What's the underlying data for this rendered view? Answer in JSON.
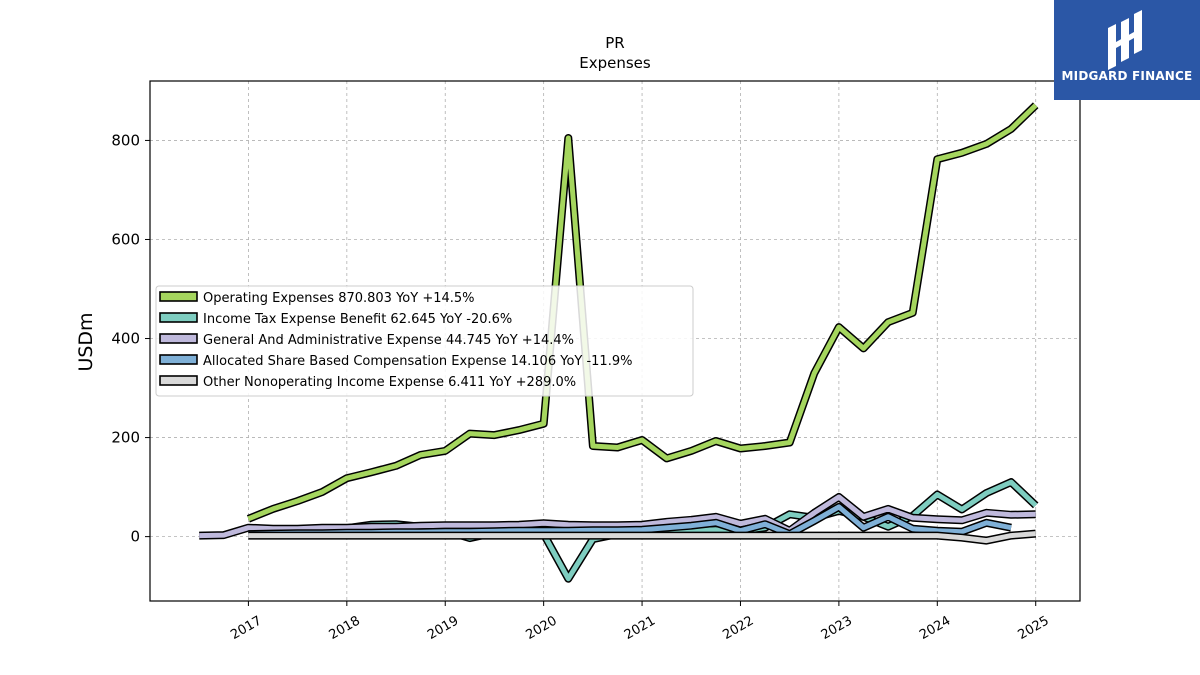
{
  "brand": {
    "name": "MIDGARD FINANCE",
    "bg": "#2b57a6"
  },
  "chart_data": {
    "type": "line",
    "title": "PR",
    "subtitle": "Expenses",
    "ylabel": "USDm",
    "xlim": [
      2016.0,
      2025.45
    ],
    "ylim": [
      -130,
      920
    ],
    "yticks": [
      0,
      200,
      400,
      600,
      800
    ],
    "xticks": [
      "2017",
      "2018",
      "2019",
      "2020",
      "2021",
      "2022",
      "2023",
      "2024",
      "2025"
    ],
    "grid": true,
    "legend_position": "center-left",
    "series": [
      {
        "name": "Operating Expenses",
        "legend": "Operating Expenses  870.803 YoY +14.5%",
        "color": "#a5d65e",
        "points": [
          [
            2017.0,
            36
          ],
          [
            2017.25,
            56
          ],
          [
            2017.5,
            72
          ],
          [
            2017.75,
            90
          ],
          [
            2018.0,
            118
          ],
          [
            2018.25,
            130
          ],
          [
            2018.5,
            143
          ],
          [
            2018.75,
            165
          ],
          [
            2019.0,
            173
          ],
          [
            2019.25,
            208
          ],
          [
            2019.5,
            205
          ],
          [
            2019.75,
            215
          ],
          [
            2020.0,
            228
          ],
          [
            2020.25,
            805
          ],
          [
            2020.5,
            183
          ],
          [
            2020.75,
            180
          ],
          [
            2021.0,
            195
          ],
          [
            2021.25,
            158
          ],
          [
            2021.5,
            173
          ],
          [
            2021.75,
            193
          ],
          [
            2022.0,
            178
          ],
          [
            2022.25,
            183
          ],
          [
            2022.5,
            190
          ],
          [
            2022.75,
            330
          ],
          [
            2023.0,
            423
          ],
          [
            2023.25,
            380
          ],
          [
            2023.5,
            433
          ],
          [
            2023.75,
            452
          ],
          [
            2024.0,
            762
          ],
          [
            2024.25,
            775
          ],
          [
            2024.5,
            793
          ],
          [
            2024.75,
            823
          ],
          [
            2025.0,
            871
          ]
        ]
      },
      {
        "name": "Income Tax Expense Benefit",
        "legend": "Income Tax Expense Benefit  62.645 YoY -20.6%",
        "color": "#7ecdc0",
        "points": [
          [
            2017.0,
            10
          ],
          [
            2017.25,
            12
          ],
          [
            2017.5,
            14
          ],
          [
            2017.75,
            15
          ],
          [
            2018.0,
            17
          ],
          [
            2018.25,
            24
          ],
          [
            2018.5,
            25
          ],
          [
            2018.75,
            20
          ],
          [
            2019.0,
            12
          ],
          [
            2019.25,
            -3
          ],
          [
            2019.5,
            8
          ],
          [
            2019.75,
            10
          ],
          [
            2020.0,
            5
          ],
          [
            2020.25,
            -85
          ],
          [
            2020.5,
            -5
          ],
          [
            2020.75,
            5
          ],
          [
            2021.0,
            8
          ],
          [
            2021.25,
            10
          ],
          [
            2021.5,
            12
          ],
          [
            2021.75,
            14
          ],
          [
            2022.0,
            12
          ],
          [
            2022.25,
            18
          ],
          [
            2022.5,
            45
          ],
          [
            2022.75,
            38
          ],
          [
            2023.0,
            52
          ],
          [
            2023.25,
            40
          ],
          [
            2023.5,
            20
          ],
          [
            2023.75,
            42
          ],
          [
            2024.0,
            85
          ],
          [
            2024.25,
            55
          ],
          [
            2024.5,
            88
          ],
          [
            2024.75,
            110
          ],
          [
            2025.0,
            63
          ]
        ]
      },
      {
        "name": "General And Administrative Expense",
        "legend": "General And Administrative Expense  44.745 YoY +14.4%",
        "color": "#bfb9dc",
        "points": [
          [
            2016.5,
            2
          ],
          [
            2016.75,
            3
          ],
          [
            2017.0,
            18
          ],
          [
            2017.25,
            16
          ],
          [
            2017.5,
            16
          ],
          [
            2017.75,
            18
          ],
          [
            2018.0,
            18
          ],
          [
            2018.25,
            20
          ],
          [
            2018.5,
            20
          ],
          [
            2018.75,
            22
          ],
          [
            2019.0,
            23
          ],
          [
            2019.25,
            23
          ],
          [
            2019.5,
            23
          ],
          [
            2019.75,
            24
          ],
          [
            2020.0,
            27
          ],
          [
            2020.25,
            24
          ],
          [
            2020.5,
            23
          ],
          [
            2020.75,
            23
          ],
          [
            2021.0,
            24
          ],
          [
            2021.25,
            30
          ],
          [
            2021.5,
            34
          ],
          [
            2021.75,
            40
          ],
          [
            2022.0,
            26
          ],
          [
            2022.25,
            36
          ],
          [
            2022.5,
            12
          ],
          [
            2022.75,
            48
          ],
          [
            2023.0,
            80
          ],
          [
            2023.25,
            40
          ],
          [
            2023.5,
            56
          ],
          [
            2023.75,
            38
          ],
          [
            2024.0,
            35
          ],
          [
            2024.25,
            33
          ],
          [
            2024.5,
            48
          ],
          [
            2024.75,
            44
          ],
          [
            2025.0,
            45
          ]
        ]
      },
      {
        "name": "Allocated Share Based Compensation Expense",
        "legend": "Allocated Share Based Compensation Expense  14.106 YoY -11.9%",
        "color": "#7fb0d7",
        "points": [
          [
            2017.0,
            5
          ],
          [
            2017.25,
            6
          ],
          [
            2017.5,
            7
          ],
          [
            2017.75,
            7
          ],
          [
            2018.0,
            8
          ],
          [
            2018.25,
            8
          ],
          [
            2018.5,
            9
          ],
          [
            2018.75,
            9
          ],
          [
            2019.0,
            10
          ],
          [
            2019.25,
            10
          ],
          [
            2019.5,
            11
          ],
          [
            2019.75,
            12
          ],
          [
            2020.0,
            12
          ],
          [
            2020.25,
            12
          ],
          [
            2020.5,
            13
          ],
          [
            2020.75,
            13
          ],
          [
            2021.0,
            14
          ],
          [
            2021.25,
            18
          ],
          [
            2021.5,
            22
          ],
          [
            2021.75,
            28
          ],
          [
            2022.0,
            12
          ],
          [
            2022.25,
            25
          ],
          [
            2022.5,
            5
          ],
          [
            2022.75,
            32
          ],
          [
            2023.0,
            60
          ],
          [
            2023.25,
            18
          ],
          [
            2023.5,
            40
          ],
          [
            2023.75,
            16
          ],
          [
            2024.0,
            12
          ],
          [
            2024.25,
            10
          ],
          [
            2024.5,
            28
          ],
          [
            2024.75,
            18
          ]
        ]
      },
      {
        "name": "Other Nonoperating Income Expense",
        "legend": "Other Nonoperating Income Expense  6.411 YoY +289.0%",
        "color": "#d9d9d9",
        "points": [
          [
            2017.0,
            2
          ],
          [
            2017.25,
            2
          ],
          [
            2017.5,
            2
          ],
          [
            2017.75,
            2
          ],
          [
            2018.0,
            2
          ],
          [
            2018.25,
            2
          ],
          [
            2018.5,
            2
          ],
          [
            2018.75,
            2
          ],
          [
            2019.0,
            2
          ],
          [
            2019.25,
            2
          ],
          [
            2019.5,
            2
          ],
          [
            2019.75,
            2
          ],
          [
            2020.0,
            2
          ],
          [
            2020.25,
            2
          ],
          [
            2020.5,
            2
          ],
          [
            2020.75,
            2
          ],
          [
            2021.0,
            2
          ],
          [
            2021.25,
            2
          ],
          [
            2021.5,
            2
          ],
          [
            2021.75,
            2
          ],
          [
            2022.0,
            2
          ],
          [
            2022.25,
            2
          ],
          [
            2022.5,
            2
          ],
          [
            2022.75,
            2
          ],
          [
            2023.0,
            2
          ],
          [
            2023.25,
            2
          ],
          [
            2023.5,
            2
          ],
          [
            2023.75,
            2
          ],
          [
            2024.0,
            2
          ],
          [
            2024.25,
            -2
          ],
          [
            2024.5,
            -8
          ],
          [
            2024.75,
            2
          ],
          [
            2025.0,
            6
          ]
        ]
      }
    ]
  }
}
